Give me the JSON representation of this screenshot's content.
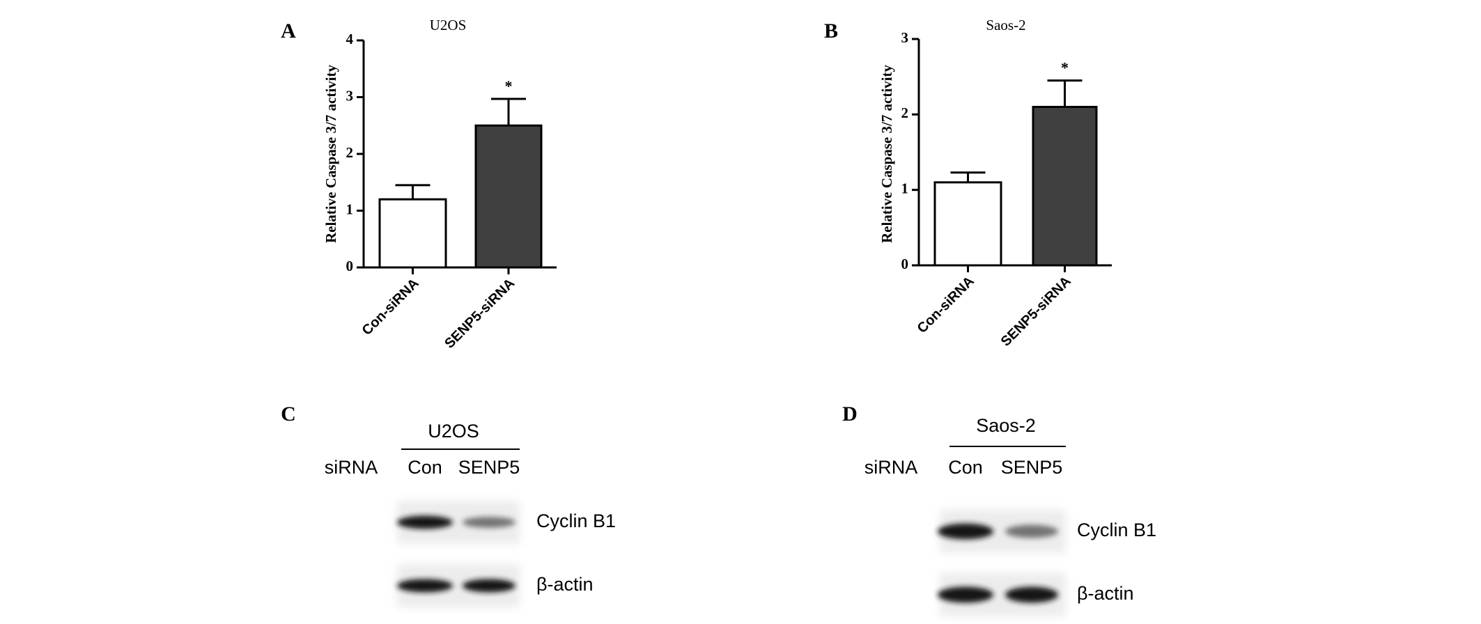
{
  "chart_data": [
    {
      "type": "bar",
      "panel_label": "A",
      "title": "U2OS",
      "y_label": "Relative Caspase 3/7 activity",
      "categories": [
        "Con-siRNA",
        "SENP5-siRNA"
      ],
      "values": [
        1.2,
        2.5
      ],
      "errors": [
        0.25,
        0.47
      ],
      "colors": [
        "#ffffff",
        "#404040"
      ],
      "significance": [
        null,
        "*"
      ],
      "ylim": [
        0,
        4
      ],
      "yticks": [
        0,
        1,
        2,
        3,
        4
      ]
    },
    {
      "type": "bar",
      "panel_label": "B",
      "title": "Saos-2",
      "y_label": "Relative Caspase 3/7 activity",
      "categories": [
        "Con-siRNA",
        "SENP5-siRNA"
      ],
      "values": [
        1.1,
        2.1
      ],
      "errors": [
        0.13,
        0.35
      ],
      "colors": [
        "#ffffff",
        "#404040"
      ],
      "significance": [
        null,
        "*"
      ],
      "ylim": [
        0,
        3
      ],
      "yticks": [
        0,
        1,
        2,
        3
      ]
    }
  ],
  "blots": [
    {
      "panel_label": "C",
      "cell_line": "U2OS",
      "row_label": "siRNA",
      "lanes": [
        "Con",
        "SENP5"
      ],
      "bands": [
        "Cyclin B1",
        "β-actin"
      ]
    },
    {
      "panel_label": "D",
      "cell_line": "Saos-2",
      "row_label": "siRNA",
      "lanes": [
        "Con",
        "SENP5"
      ],
      "bands": [
        "Cyclin B1",
        "β-actin"
      ]
    }
  ]
}
